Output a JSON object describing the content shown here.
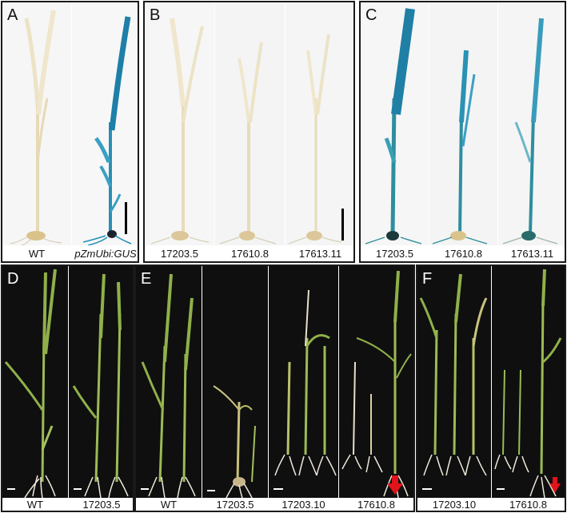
{
  "panels": {
    "A": {
      "label": "A",
      "captions": [
        "WT",
        "pZmUbi:GUS"
      ]
    },
    "B": {
      "label": "B",
      "captions": [
        "17203.5",
        "17610.8",
        "17613.11"
      ]
    },
    "C": {
      "label": "C",
      "captions": [
        "17203.5",
        "17610.8",
        "17613.11"
      ]
    },
    "D": {
      "label": "D",
      "captions": [
        "WT",
        "17203.5"
      ]
    },
    "E": {
      "label": "E",
      "captions": [
        "WT",
        "17203.5",
        "17203.10",
        "17610.8"
      ]
    },
    "F": {
      "label": "F",
      "captions": [
        "17203.10",
        "17610.8"
      ]
    }
  },
  "colors": {
    "seedling_pale": "#e9dfc0",
    "gus_blue": "#1f8fb8",
    "leaf_green": "#8fb04a",
    "root_white": "#efe9dc",
    "black_bg": "#0f0f0f",
    "red_marker": "#e0141a"
  }
}
